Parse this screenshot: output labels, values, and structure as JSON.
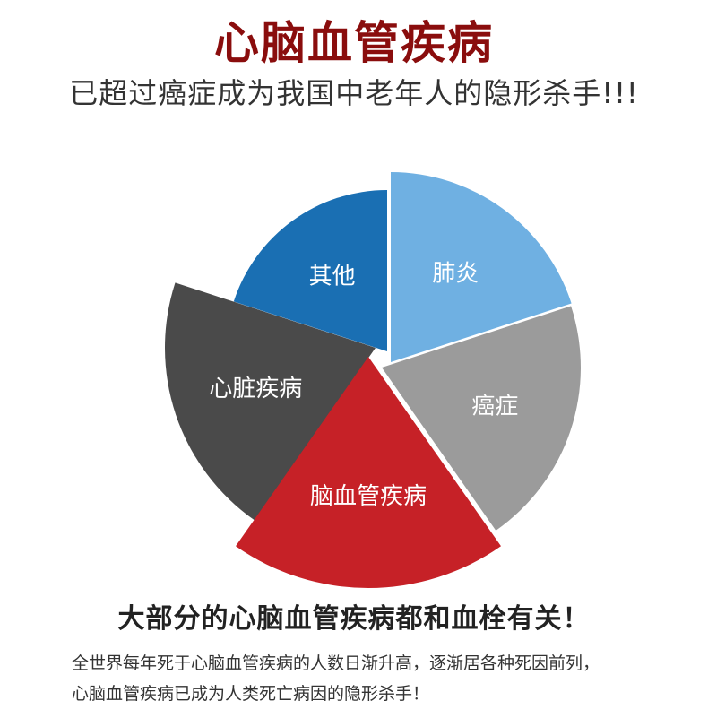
{
  "header": {
    "title": "心脑血管疾病",
    "subtitle": "已超过癌症成为我国中老年人的隐形杀手!!!"
  },
  "chart_data": {
    "type": "pie",
    "slices": [
      {
        "label": "心脏疾病",
        "color": "#4a4a4a"
      },
      {
        "label": "其他",
        "color": "#1a6fb3"
      },
      {
        "label": "肺炎",
        "color": "#6fb0e2"
      },
      {
        "label": "癌症",
        "color": "#9b9b9b"
      },
      {
        "label": "脑血管疾病",
        "color": "#c62127"
      }
    ]
  },
  "footer": {
    "headline": "大部分的心脑血管疾病都和血栓有关！",
    "body_line1": "全世界每年死于心脑血管疾病的人数日渐升高，逐渐居各种死因前列，",
    "body_line2": "心脑血管疾病已成为人类死亡病因的隐形杀手！"
  },
  "colors": {
    "title": "#8a0d0d",
    "label_text": "#ffffff"
  }
}
